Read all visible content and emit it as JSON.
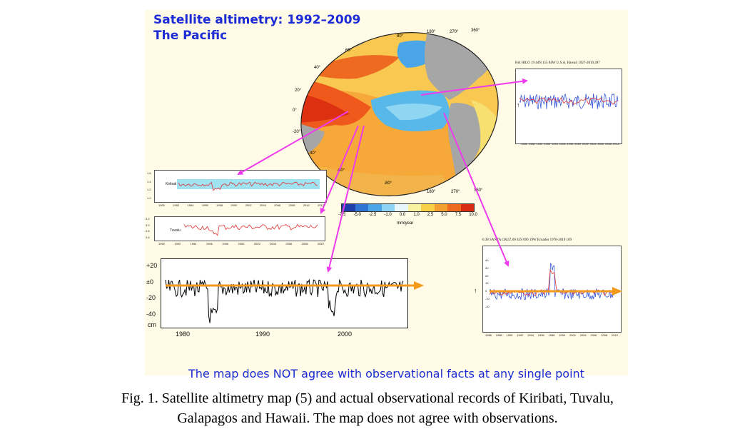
{
  "figure": {
    "title_line1": "Satellite altimetry: 1992–2009",
    "title_line2": "The Pacific",
    "bottom_message": "The map does NOT agree with observational facts at any single point",
    "caption_line1": "Fig. 1. Satellite altimetry map (5) and actual observational records of Kiribati, Tuvalu,",
    "caption_line2": "Galapagos and Hawaii. The map does not agree with observations."
  },
  "map": {
    "lon_labels": [
      "180°",
      "270°",
      "360°",
      "180°",
      "270°",
      "360°"
    ],
    "lat_labels": [
      "80°",
      "60°",
      "40°",
      "20°",
      "0°",
      "-20°",
      "-40°",
      "-60°",
      "-80°"
    ],
    "colorbar": {
      "ticks": [
        "-7.5",
        "-5.0",
        "-2.5",
        "-1.0",
        "0.0",
        "1.0",
        "2.5",
        "5.0",
        "7.5",
        "10.0"
      ],
      "unit": "mm/year",
      "colors": [
        "#1e3fa8",
        "#2f74d0",
        "#4aa6e6",
        "#8fd3f2",
        "#e6f6fb",
        "#f7f1a0",
        "#f8d048",
        "#f4a030",
        "#ee6a20",
        "#d92a14"
      ]
    }
  },
  "panels": {
    "hawaii": {
      "title": "Hol HILO 19 44N 155 04W U.S.A. Hawaii 1927-2010 287",
      "x_ticks": [
        "1986",
        "1988",
        "1990",
        "1992",
        "1994",
        "1996",
        "1998",
        "2000",
        "2002",
        "2004",
        "2006",
        "2008",
        "2010"
      ],
      "y_label": "↑"
    },
    "kiribati": {
      "label": "Kiribati",
      "y_ticks": [
        "1.6",
        "1.4",
        "1.2",
        "1.0"
      ],
      "x_ticks": [
        "1990",
        "1992",
        "1994",
        "1996",
        "1998",
        "2000",
        "2002",
        "2004",
        "2006",
        "2008",
        "2010",
        "2012"
      ]
    },
    "tuvalu": {
      "label": "Tuvalu",
      "y_ticks": [
        "3.2",
        "3.0",
        "2.8",
        "2.6"
      ],
      "x_ticks": [
        "1990",
        "1992",
        "1994",
        "1996",
        "1998",
        "2000",
        "2002",
        "2004",
        "2006",
        "2008",
        "2010"
      ]
    },
    "long_record": {
      "y_ticks": [
        "+20",
        "±0",
        "-20",
        "-40"
      ],
      "y_unit": "cm",
      "x_ticks": [
        "1980",
        "1990",
        "2000"
      ]
    },
    "galapagos": {
      "title": "0.38 SANTA CRUZ 00 45S 090 19W Ecuador 1978-2010 169",
      "x_ticks": [
        "1986",
        "1988",
        "1990",
        "1992",
        "1994",
        "1996",
        "1998",
        "2000",
        "2002",
        "2004",
        "2006",
        "2008",
        "2010"
      ],
      "y_ticks": [
        "40",
        "30",
        "20",
        "10",
        "0",
        "-10",
        "-20"
      ],
      "y_label": "↑"
    }
  },
  "colors": {
    "title_blue": "#1c2bd6",
    "arrow_magenta": "#ee3bee",
    "trend_orange": "#f39a1a",
    "series_blue": "#3a5ad8",
    "series_red": "#e03030",
    "kiribati_band": "#9fe3f0"
  }
}
